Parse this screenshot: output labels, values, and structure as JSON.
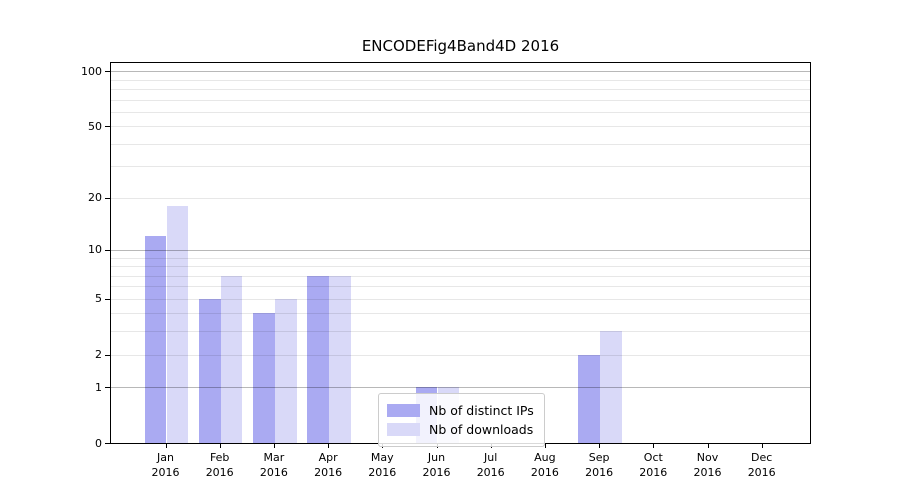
{
  "title": "ENCODEFig4Band4D 2016",
  "colors": {
    "background": "#ffffff",
    "axis": "#000000",
    "grid_major": "#b8b8b8",
    "grid_minor": "#e7e7e7",
    "series_ips": "#aaaaf2",
    "series_downloads": "#d9d9f8"
  },
  "legend": {
    "items": [
      {
        "key": "ips",
        "label": "Nb of distinct IPs",
        "color": "#aaaaf2"
      },
      {
        "key": "downloads",
        "label": "Nb of downloads",
        "color": "#d9d9f8"
      }
    ]
  },
  "y_axis": {
    "scale": "log10(1+v)",
    "ylim_top": 111,
    "ticks": [
      {
        "v": 100,
        "label": "100"
      },
      {
        "v": 50,
        "label": "50"
      },
      {
        "v": 20,
        "label": "20"
      },
      {
        "v": 10,
        "label": "10"
      },
      {
        "v": 5,
        "label": "5"
      },
      {
        "v": 2,
        "label": "2"
      },
      {
        "v": 1,
        "label": "1"
      },
      {
        "v": 0,
        "label": "0"
      }
    ],
    "gridlines_major": [
      1,
      10,
      100
    ],
    "gridlines_minor": [
      2,
      3,
      4,
      5,
      6,
      7,
      8,
      9,
      20,
      30,
      40,
      50,
      60,
      70,
      80,
      90
    ]
  },
  "chart_data": {
    "type": "bar",
    "title": "ENCODEFig4Band4D 2016",
    "xlabel": "",
    "ylabel": "",
    "grid": "on",
    "legend_position": "lower-center-inside",
    "yscale": "log-like (log10(1+v))",
    "ylim": [
      0,
      111
    ],
    "yticks": [
      0,
      1,
      2,
      5,
      10,
      20,
      50,
      100
    ],
    "categories": [
      {
        "month": "Jan",
        "year": "2016"
      },
      {
        "month": "Feb",
        "year": "2016"
      },
      {
        "month": "Mar",
        "year": "2016"
      },
      {
        "month": "Apr",
        "year": "2016"
      },
      {
        "month": "May",
        "year": "2016"
      },
      {
        "month": "Jun",
        "year": "2016"
      },
      {
        "month": "Jul",
        "year": "2016"
      },
      {
        "month": "Aug",
        "year": "2016"
      },
      {
        "month": "Sep",
        "year": "2016"
      },
      {
        "month": "Oct",
        "year": "2016"
      },
      {
        "month": "Nov",
        "year": "2016"
      },
      {
        "month": "Dec",
        "year": "2016"
      }
    ],
    "series": [
      {
        "key": "ips",
        "name": "Nb of distinct IPs",
        "color": "#aaaaf2",
        "values": [
          12,
          5,
          4,
          7,
          0,
          1,
          0,
          0,
          2,
          0,
          0,
          0
        ]
      },
      {
        "key": "downloads",
        "name": "Nb of downloads",
        "color": "#d9d9f8",
        "values": [
          18,
          7,
          5,
          7,
          0,
          1,
          0,
          0,
          3,
          0,
          0,
          0
        ]
      }
    ]
  }
}
